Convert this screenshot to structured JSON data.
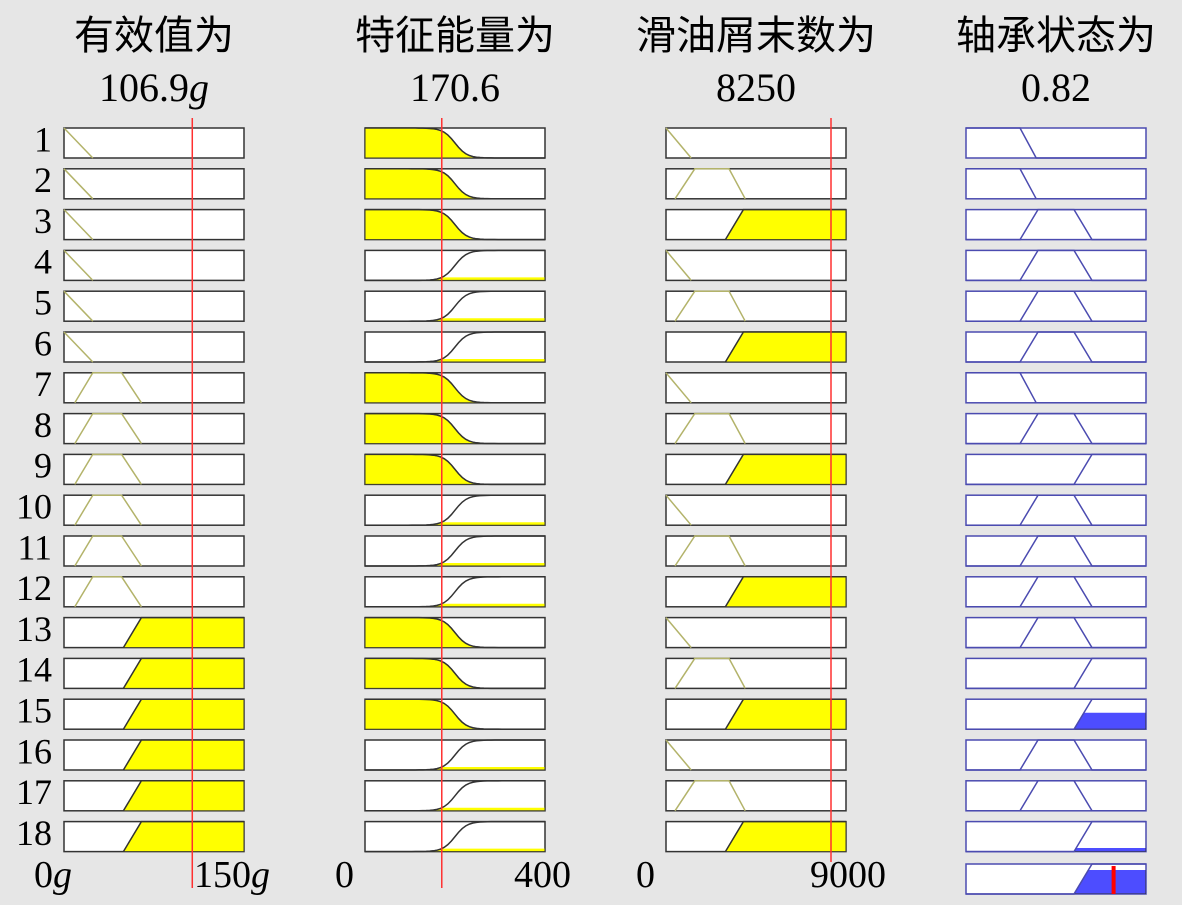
{
  "columns": [
    {
      "title": "有效值为",
      "value": "106.9",
      "unit": "g",
      "axis": [
        "0",
        "150"
      ],
      "axis_unit": "g"
    },
    {
      "title": "特征能量为",
      "value": "170.6",
      "axis": [
        "0",
        "400"
      ]
    },
    {
      "title": "滑油屑末数为",
      "value": "8250",
      "axis": [
        "0",
        "9000"
      ]
    },
    {
      "title": "轴承状态为",
      "value": "0.82"
    }
  ],
  "rows": [
    "1",
    "2",
    "3",
    "4",
    "5",
    "6",
    "7",
    "8",
    "9",
    "10",
    "11",
    "12",
    "13",
    "14",
    "15",
    "16",
    "17",
    "18"
  ]
}
